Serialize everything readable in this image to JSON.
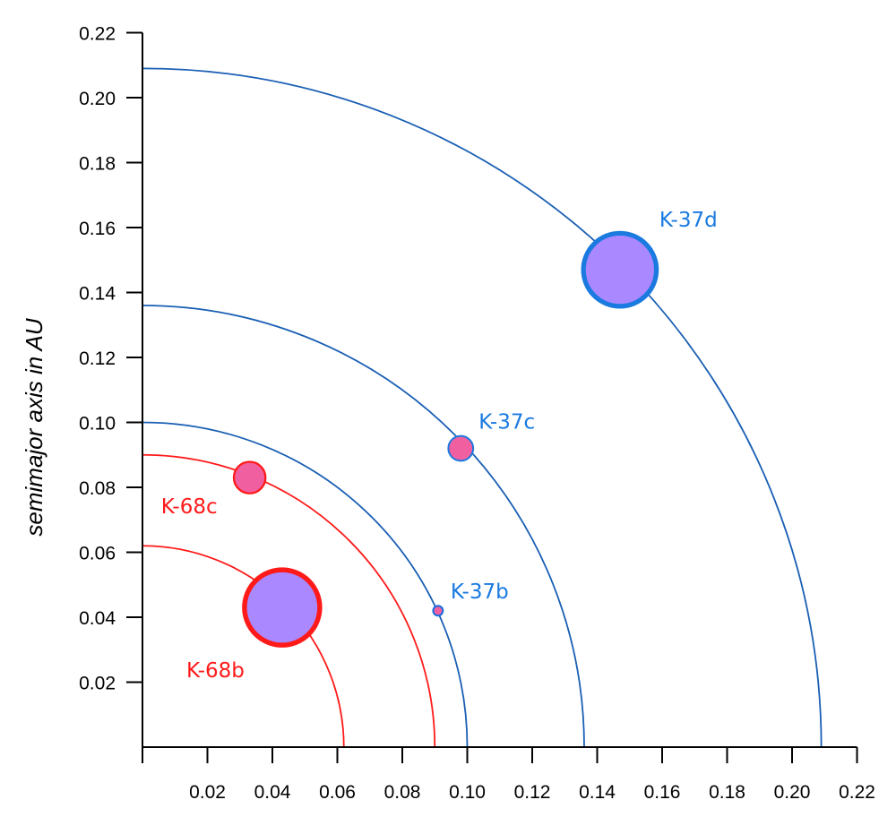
{
  "chart_data": {
    "type": "scatter",
    "ylabel": "semimajor axis in AU",
    "xlabel": "",
    "xlim": [
      0,
      0.22
    ],
    "ylim": [
      0,
      0.22
    ],
    "x_ticks": [
      "0.02",
      "0.04",
      "0.06",
      "0.08",
      "0.10",
      "0.12",
      "0.14",
      "0.16",
      "0.18",
      "0.20",
      "0.22"
    ],
    "y_ticks": [
      "0.02",
      "0.04",
      "0.06",
      "0.08",
      "0.10",
      "0.12",
      "0.14",
      "0.16",
      "0.18",
      "0.20",
      "0.22"
    ],
    "grid": false,
    "orbits": [
      {
        "system": "Kepler-68",
        "radius_au": 0.062,
        "color": "#ff1a1a"
      },
      {
        "system": "Kepler-68",
        "radius_au": 0.09,
        "color": "#ff1a1a"
      },
      {
        "system": "Kepler-37",
        "radius_au": 0.1,
        "color": "#1a5fb4"
      },
      {
        "system": "Kepler-37",
        "radius_au": 0.136,
        "color": "#1a5fb4"
      },
      {
        "system": "Kepler-37",
        "radius_au": 0.209,
        "color": "#1a5fb4"
      }
    ],
    "planets": [
      {
        "label": "K-68b",
        "x": 0.043,
        "y": 0.043,
        "relative_size": 1.0,
        "fill": "#aa88ff",
        "stroke": "#ff1a1a",
        "label_color": "#ff1a1a"
      },
      {
        "label": "K-68c",
        "x": 0.033,
        "y": 0.083,
        "relative_size": 0.42,
        "fill": "#f060a0",
        "stroke": "#ff1a1a",
        "label_color": "#ff1a1a"
      },
      {
        "label": "K-37b",
        "x": 0.091,
        "y": 0.042,
        "relative_size": 0.13,
        "fill": "#f060a0",
        "stroke": "#1a6fe0",
        "label_color": "#1a7ae0"
      },
      {
        "label": "K-37c",
        "x": 0.098,
        "y": 0.092,
        "relative_size": 0.33,
        "fill": "#f060a0",
        "stroke": "#1a7ae0",
        "label_color": "#1a7ae0"
      },
      {
        "label": "K-37d",
        "x": 0.147,
        "y": 0.147,
        "relative_size": 0.97,
        "fill": "#aa88ff",
        "stroke": "#1a7ae0",
        "label_color": "#1a7ae0"
      }
    ],
    "annotations": [
      "K-68b",
      "K-68c",
      "K-37b",
      "K-37c",
      "K-37d"
    ]
  }
}
